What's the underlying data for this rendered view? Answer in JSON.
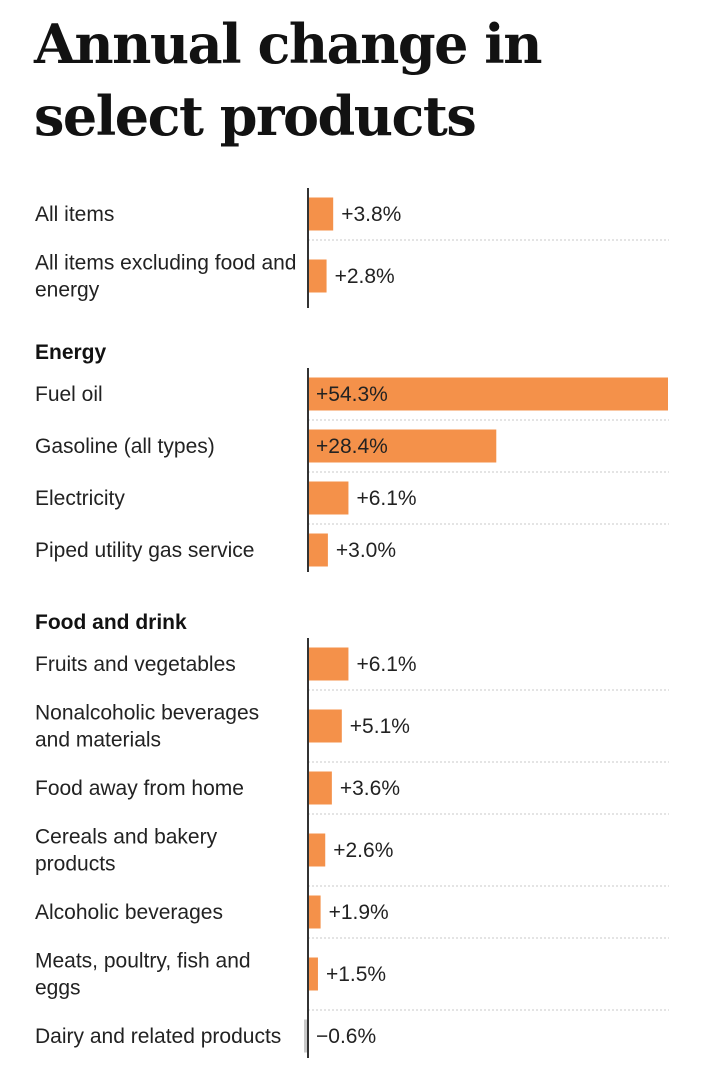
{
  "chart_data": {
    "type": "bar",
    "orientation": "horizontal",
    "title": "Annual change in select products",
    "unit": "%",
    "bar_color": "#f4914a",
    "axis_color": "#333333",
    "groups": [
      {
        "heading": "",
        "items": [
          {
            "label": "All items",
            "value": 3.8,
            "display": "+3.8%"
          },
          {
            "label": "All items excluding food and energy",
            "value": 2.8,
            "display": "+2.8%"
          }
        ]
      },
      {
        "heading": "Energy",
        "items": [
          {
            "label": "Fuel oil",
            "value": 54.3,
            "display": "+54.3%"
          },
          {
            "label": "Gasoline (all types)",
            "value": 28.4,
            "display": "+28.4%"
          },
          {
            "label": "Electricity",
            "value": 6.1,
            "display": "+6.1%"
          },
          {
            "label": "Piped utility gas service",
            "value": 3.0,
            "display": "+3.0%"
          }
        ]
      },
      {
        "heading": "Food and drink",
        "items": [
          {
            "label": "Fruits and vegetables",
            "value": 6.1,
            "display": "+6.1%"
          },
          {
            "label": "Nonalcoholic beverages and materials",
            "value": 5.1,
            "display": "+5.1%"
          },
          {
            "label": "Food away from home",
            "value": 3.6,
            "display": "+3.6%"
          },
          {
            "label": "Cereals and bakery products",
            "value": 2.6,
            "display": "+2.6%"
          },
          {
            "label": "Alcoholic beverages",
            "value": 1.9,
            "display": "+1.9%"
          },
          {
            "label": "Meats, poultry, fish and eggs",
            "value": 1.5,
            "display": "+1.5%"
          },
          {
            "label": "Dairy and related products",
            "value": -0.6,
            "display": "−0.6%"
          }
        ]
      }
    ]
  }
}
